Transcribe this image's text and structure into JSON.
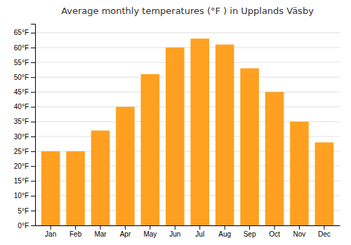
{
  "chart_data": {
    "type": "bar",
    "title": "Average monthly temperatures (°F ) in Upplands Väsby",
    "categories": [
      "Jan",
      "Feb",
      "Mar",
      "Apr",
      "May",
      "Jun",
      "Jul",
      "Aug",
      "Sep",
      "Oct",
      "Nov",
      "Dec"
    ],
    "values": [
      25,
      25,
      32,
      40,
      51,
      60,
      63,
      61,
      53,
      45,
      35,
      28
    ],
    "color": "#FFA020",
    "ylim": [
      0,
      68
    ],
    "yticks": [
      {
        "value": 0,
        "label": "0°F"
      },
      {
        "value": 5,
        "label": "5°F"
      },
      {
        "value": 10,
        "label": "10°F"
      },
      {
        "value": 15,
        "label": "15°F"
      },
      {
        "value": 20,
        "label": "20°F"
      },
      {
        "value": 25,
        "label": "25°F"
      },
      {
        "value": 30,
        "label": "30°F"
      },
      {
        "value": 35,
        "label": "35°F"
      },
      {
        "value": 40,
        "label": "40°F"
      },
      {
        "value": 45,
        "label": "45°F"
      },
      {
        "value": 50,
        "label": "50°F"
      },
      {
        "value": 55,
        "label": "55°F"
      },
      {
        "value": 60,
        "label": "60°F"
      },
      {
        "value": 65,
        "label": "65°F"
      }
    ],
    "grid": true
  }
}
